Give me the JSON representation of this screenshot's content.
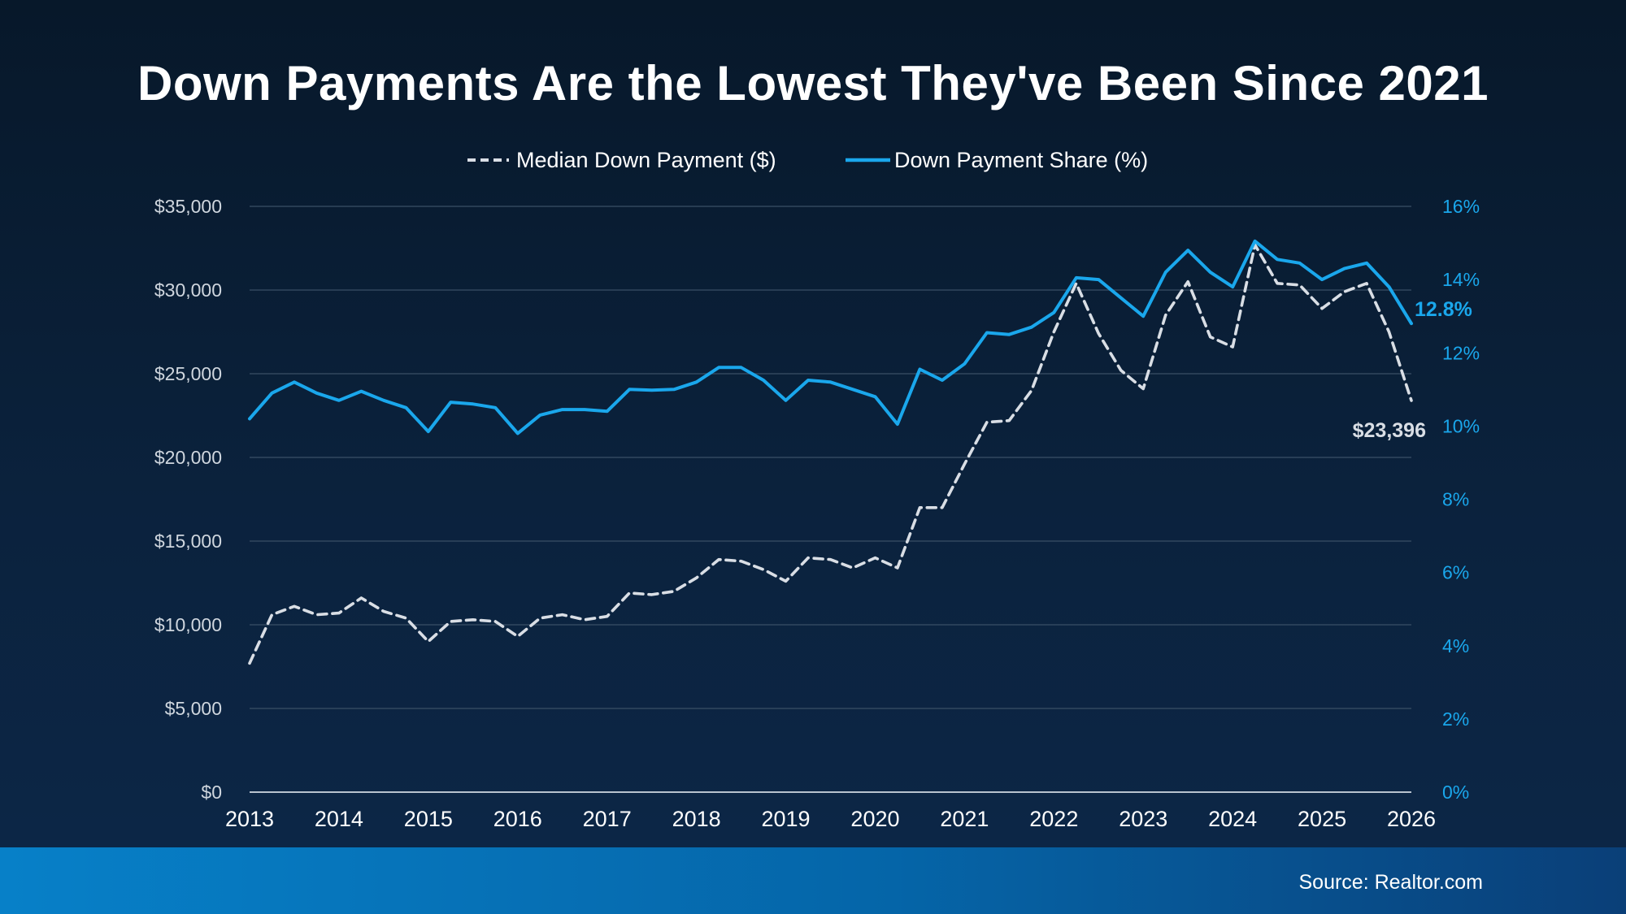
{
  "title": "Down Payments Are the Lowest They've Been Since 2021",
  "source": "Source: Realtor.com",
  "colors": {
    "dollar_series": "#d9dee5",
    "share_series": "#1aa7ec",
    "grid": "#3a4f66",
    "axis_text": "#cfd6de",
    "right_axis_text": "#1aa7ec"
  },
  "chart_data": {
    "type": "line",
    "legend_position": "top-center",
    "grid": true,
    "x_ticks": [
      "2013",
      "2014",
      "2015",
      "2016",
      "2017",
      "2018",
      "2019",
      "2020",
      "2021",
      "2022",
      "2023",
      "2024",
      "2025",
      "2026"
    ],
    "xlim": [
      2013,
      2026
    ],
    "y_left": {
      "ylim": [
        0,
        35000
      ],
      "ticks": [
        0,
        5000,
        10000,
        15000,
        20000,
        25000,
        30000,
        35000
      ],
      "tick_labels": [
        "$0",
        "$5,000",
        "$10,000",
        "$15,000",
        "$20,000",
        "$25,000",
        "$30,000",
        "$35,000"
      ]
    },
    "y_right": {
      "ylim": [
        0,
        16
      ],
      "ticks": [
        0,
        2,
        4,
        6,
        8,
        10,
        12,
        14,
        16
      ],
      "tick_labels": [
        "0%",
        "2%",
        "4%",
        "6%",
        "8%",
        "10%",
        "12%",
        "14%",
        "16%"
      ]
    },
    "x": [
      2013.0,
      2013.25,
      2013.5,
      2013.75,
      2014.0,
      2014.25,
      2014.5,
      2014.75,
      2015.0,
      2015.25,
      2015.5,
      2015.75,
      2016.0,
      2016.25,
      2016.5,
      2016.75,
      2017.0,
      2017.25,
      2017.5,
      2017.75,
      2018.0,
      2018.25,
      2018.5,
      2018.75,
      2019.0,
      2019.25,
      2019.5,
      2019.75,
      2020.0,
      2020.25,
      2020.5,
      2020.75,
      2021.0,
      2021.25,
      2021.5,
      2021.75,
      2022.0,
      2022.25,
      2022.5,
      2022.75,
      2023.0,
      2023.25,
      2023.5,
      2023.75,
      2024.0,
      2024.25,
      2024.5,
      2024.75,
      2025.0,
      2025.25,
      2025.5,
      2025.75,
      2026.0
    ],
    "series": [
      {
        "name": "Median Down Payment ($)",
        "axis": "left",
        "style": "dashed",
        "values": [
          7700,
          10600,
          11100,
          10600,
          10700,
          11600,
          10800,
          10400,
          9000,
          10200,
          10300,
          10200,
          9300,
          10400,
          10600,
          10300,
          10500,
          11900,
          11800,
          12000,
          12800,
          13900,
          13800,
          13300,
          12600,
          14000,
          13900,
          13400,
          14000,
          13400,
          17000,
          17000,
          19600,
          22100,
          22200,
          24000,
          27500,
          30400,
          27400,
          25200,
          24100,
          28500,
          30500,
          27200,
          26600,
          32700,
          30400,
          30300,
          28900,
          29900,
          30400,
          27500,
          23396
        ],
        "end_label": "$23,396"
      },
      {
        "name": "Down Payment Share (%)",
        "axis": "right",
        "style": "solid",
        "values": [
          10.2,
          10.9,
          11.2,
          10.9,
          10.7,
          10.95,
          10.7,
          10.5,
          9.85,
          10.65,
          10.6,
          10.5,
          9.8,
          10.3,
          10.45,
          10.45,
          10.4,
          11.0,
          10.98,
          11.0,
          11.2,
          11.6,
          11.6,
          11.25,
          10.7,
          11.25,
          11.2,
          11.0,
          10.8,
          10.05,
          11.55,
          11.25,
          11.7,
          12.55,
          12.5,
          12.7,
          13.1,
          14.05,
          14.0,
          13.5,
          13.0,
          14.2,
          14.8,
          14.2,
          13.8,
          15.05,
          14.55,
          14.45,
          14.0,
          14.3,
          14.45,
          13.8,
          12.8
        ],
        "end_label": "12.8%"
      }
    ]
  }
}
